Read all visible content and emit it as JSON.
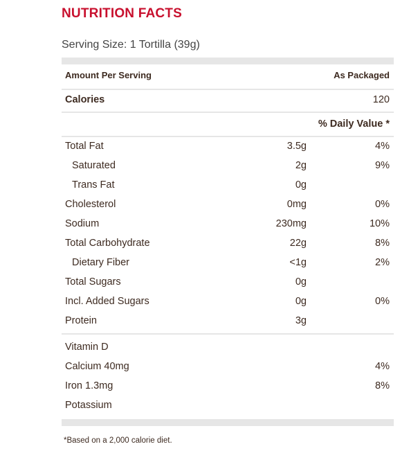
{
  "title": "NUTRITION FACTS",
  "serving_size": "Serving Size: 1 Tortilla (39g)",
  "header": {
    "amount_per_serving": "Amount Per Serving",
    "as_packaged": "As Packaged"
  },
  "calories": {
    "label": "Calories",
    "value": "120"
  },
  "daily_value_header": "% Daily Value *",
  "nutrients": [
    {
      "label": "Total Fat",
      "amount": "3.5g",
      "dv": "4%"
    },
    {
      "label": "Saturated",
      "amount": "2g",
      "dv": "9%"
    },
    {
      "label": "Trans Fat",
      "amount": "0g",
      "dv": ""
    },
    {
      "label": "Cholesterol",
      "amount": "0mg",
      "dv": "0%"
    },
    {
      "label": "Sodium",
      "amount": "230mg",
      "dv": "10%"
    },
    {
      "label": "Total Carbohydrate",
      "amount": "22g",
      "dv": "8%"
    },
    {
      "label": "Dietary Fiber",
      "amount": "<1g",
      "dv": "2%"
    },
    {
      "label": "Total Sugars",
      "amount": "0g",
      "dv": ""
    },
    {
      "label": "Incl. Added Sugars",
      "amount": "0g",
      "dv": "0%"
    },
    {
      "label": "Protein",
      "amount": "3g",
      "dv": ""
    }
  ],
  "vitamins": [
    {
      "label": "Vitamin D",
      "dv": ""
    },
    {
      "label": "Calcium 40mg",
      "dv": "4%"
    },
    {
      "label": "Iron 1.3mg",
      "dv": "8%"
    },
    {
      "label": "Potassium",
      "dv": ""
    }
  ],
  "footnote": "*Based on a 2,000 calorie diet."
}
